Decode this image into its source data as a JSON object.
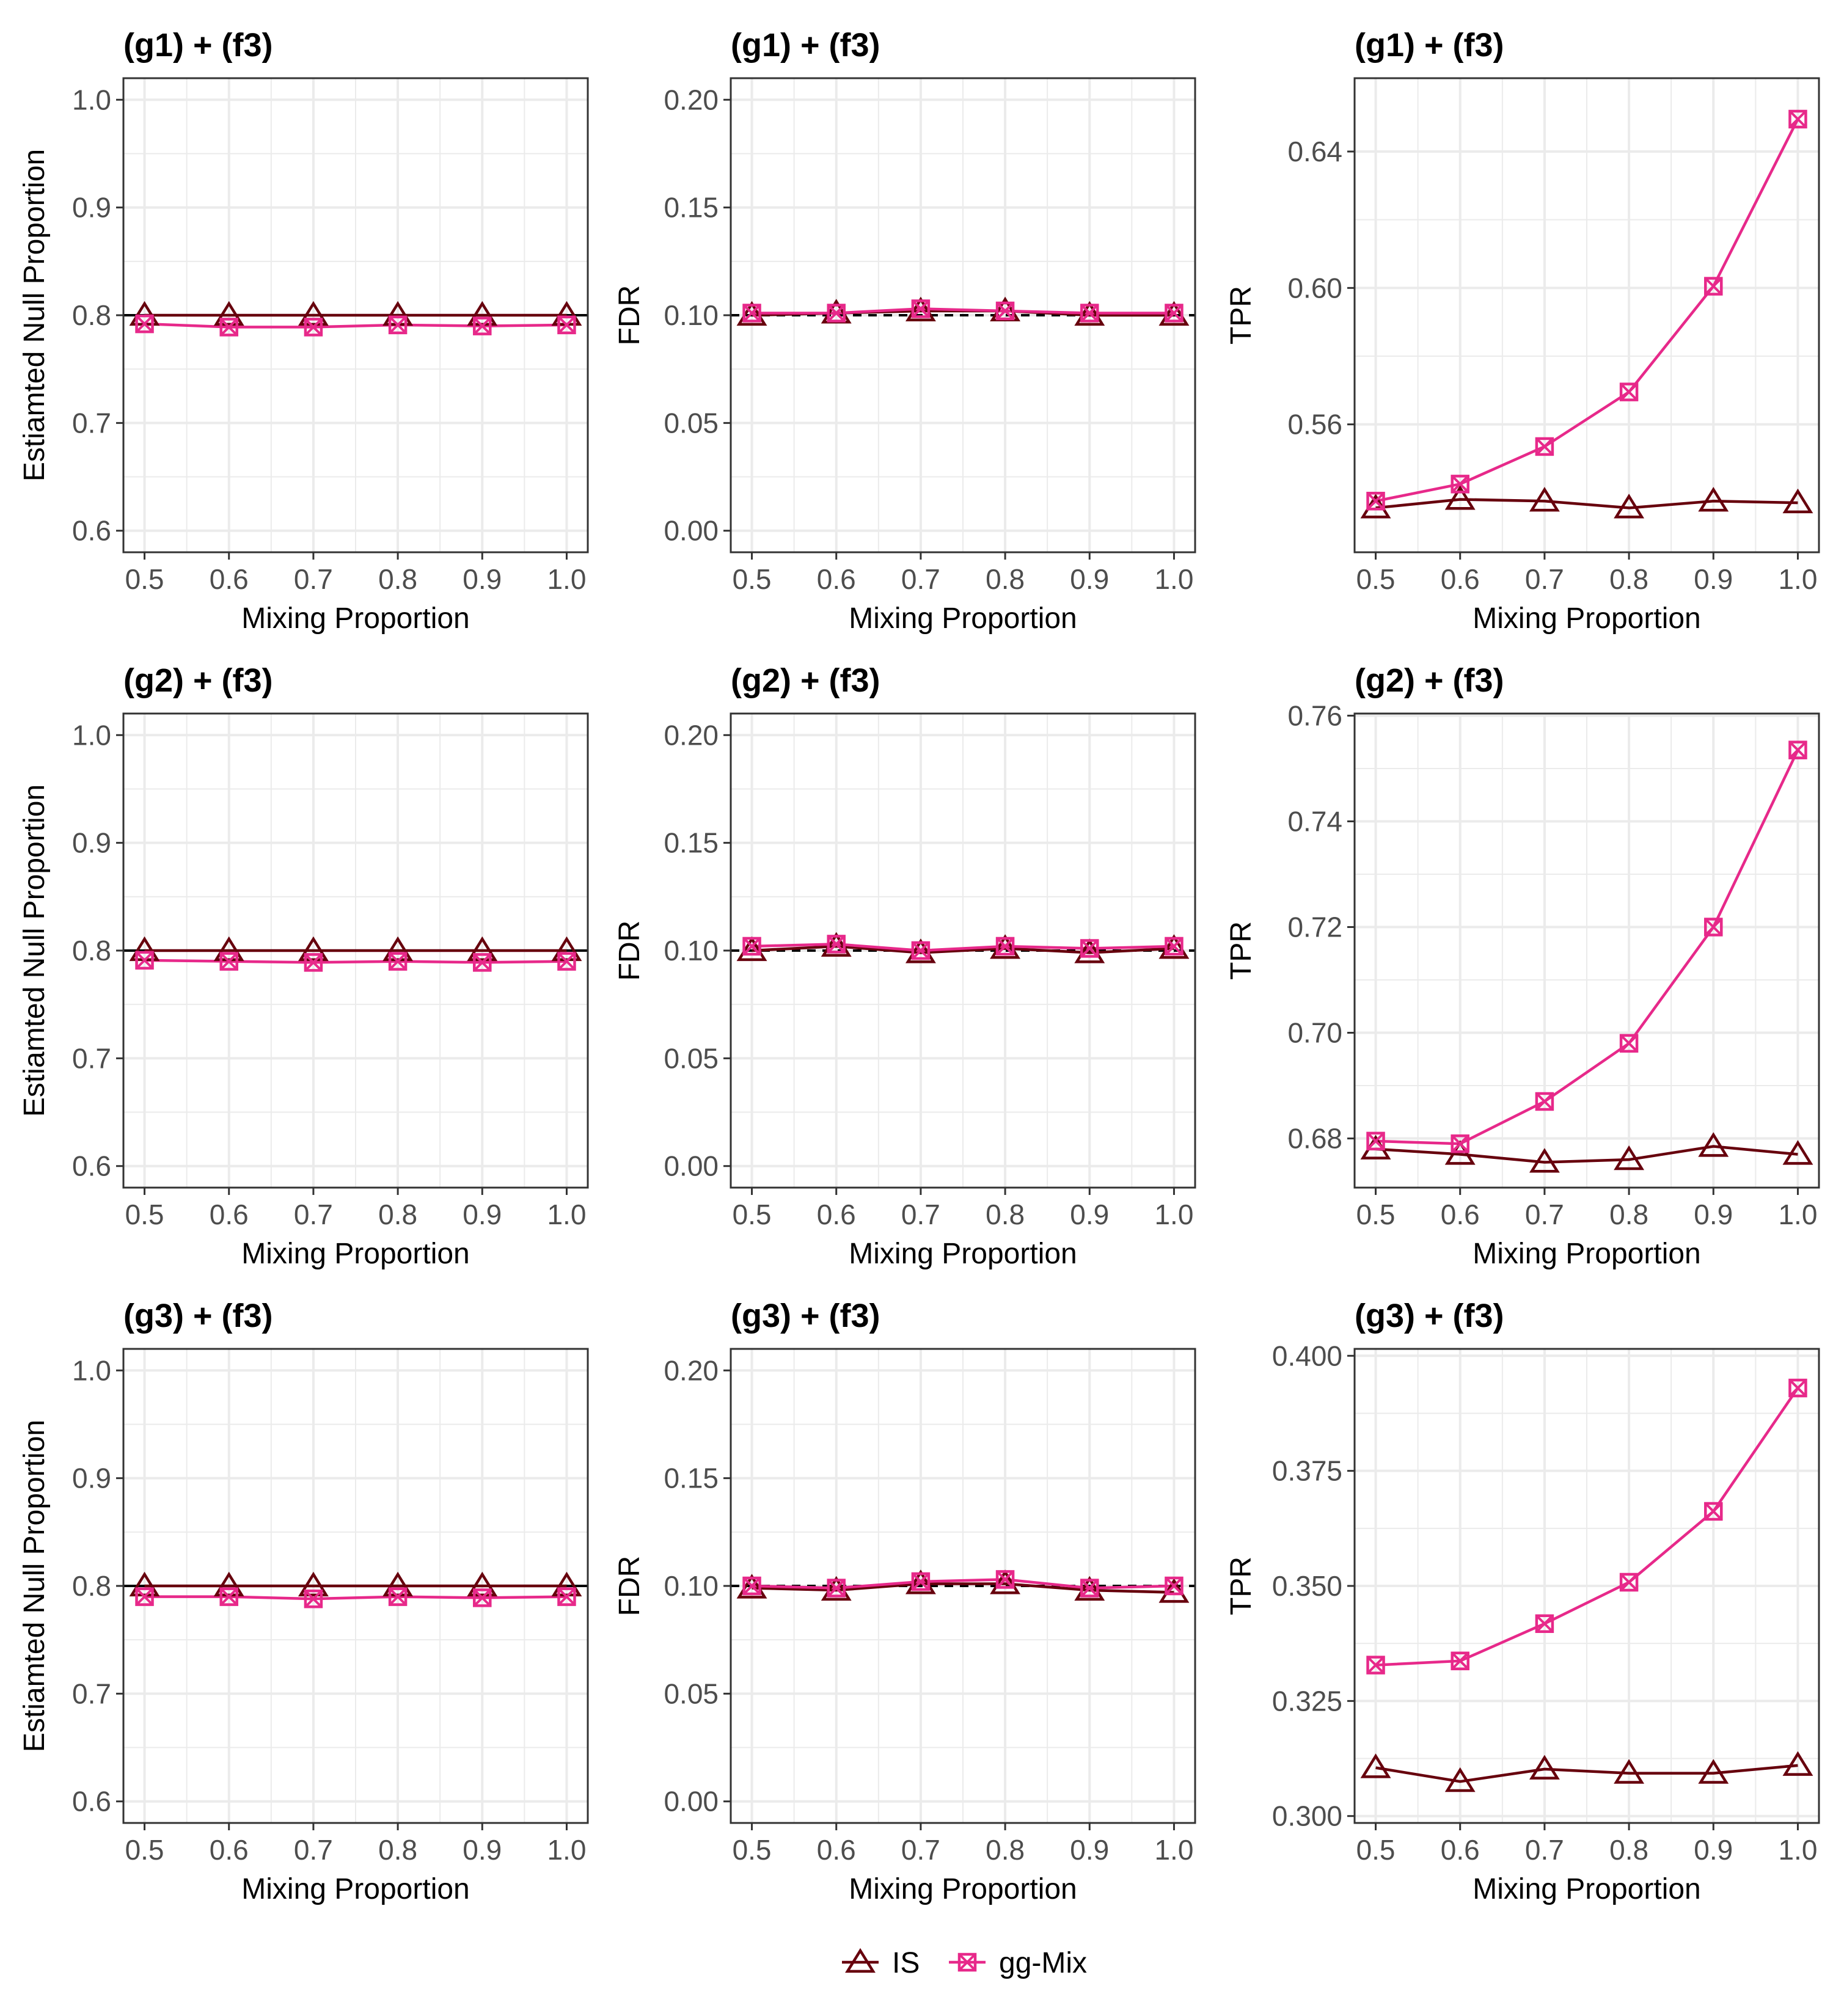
{
  "colors": {
    "is": "#67000d",
    "ggmix": "#e7298a",
    "reference": "#000000",
    "grid": "#ebebeb",
    "panel_border": "#333333"
  },
  "legend": {
    "position": "bottom",
    "items": [
      {
        "label": "IS",
        "marker": "triangle-open"
      },
      {
        "label": "gg-Mix",
        "marker": "square-x"
      }
    ]
  },
  "chart_data": [
    {
      "type": "line",
      "title": "(g1) + (f3)",
      "xlabel": "Mixing Proportion",
      "ylabel": "Estiamted Null Proportion",
      "x": [
        0.5,
        0.6,
        0.7,
        0.8,
        0.9,
        1.0
      ],
      "xlim": [
        0.475,
        1.025
      ],
      "ylim": [
        0.58,
        1.02
      ],
      "xticks": [
        "0.5",
        "0.6",
        "0.7",
        "0.8",
        "0.9",
        "1.0"
      ],
      "yticks": [
        "0.6",
        "0.7",
        "0.8",
        "0.9",
        "1.0"
      ],
      "reference": {
        "y": 0.8,
        "style": "solid"
      },
      "series": [
        {
          "name": "IS",
          "values": [
            0.8,
            0.8,
            0.8,
            0.8,
            0.8,
            0.8
          ]
        },
        {
          "name": "gg-Mix",
          "values": [
            0.792,
            0.789,
            0.789,
            0.791,
            0.79,
            0.791
          ]
        }
      ]
    },
    {
      "type": "line",
      "title": "(g1) + (f3)",
      "xlabel": "Mixing Proportion",
      "ylabel": "FDR",
      "x": [
        0.5,
        0.6,
        0.7,
        0.8,
        0.9,
        1.0
      ],
      "xlim": [
        0.475,
        1.025
      ],
      "ylim": [
        -0.01,
        0.21
      ],
      "xticks": [
        "0.5",
        "0.6",
        "0.7",
        "0.8",
        "0.9",
        "1.0"
      ],
      "yticks": [
        "0.00",
        "0.05",
        "0.10",
        "0.15",
        "0.20"
      ],
      "reference": {
        "y": 0.1,
        "style": "dashed"
      },
      "series": [
        {
          "name": "IS",
          "values": [
            0.1,
            0.101,
            0.102,
            0.102,
            0.1,
            0.1
          ]
        },
        {
          "name": "gg-Mix",
          "values": [
            0.101,
            0.101,
            0.103,
            0.102,
            0.101,
            0.101
          ]
        }
      ]
    },
    {
      "type": "line",
      "title": "(g1) + (f3)",
      "xlabel": "Mixing Proportion",
      "ylabel": "TPR",
      "x": [
        0.5,
        0.6,
        0.7,
        0.8,
        0.9,
        1.0
      ],
      "xlim": [
        0.475,
        1.025
      ],
      "ylim": [
        0.5225,
        0.6615
      ],
      "xticks": [
        "0.5",
        "0.6",
        "0.7",
        "0.8",
        "0.9",
        "1.0"
      ],
      "yticks": [
        "0.56",
        "0.60",
        "0.64"
      ],
      "series": [
        {
          "name": "IS",
          "values": [
            0.5355,
            0.538,
            0.5375,
            0.5355,
            0.5375,
            0.537
          ]
        },
        {
          "name": "gg-Mix",
          "values": [
            0.5375,
            0.5425,
            0.5535,
            0.5695,
            0.6005,
            0.6495
          ]
        }
      ]
    },
    {
      "type": "line",
      "title": "(g2) + (f3)",
      "xlabel": "Mixing Proportion",
      "ylabel": "Estiamted Null Proportion",
      "x": [
        0.5,
        0.6,
        0.7,
        0.8,
        0.9,
        1.0
      ],
      "xlim": [
        0.475,
        1.025
      ],
      "ylim": [
        0.58,
        1.02
      ],
      "xticks": [
        "0.5",
        "0.6",
        "0.7",
        "0.8",
        "0.9",
        "1.0"
      ],
      "yticks": [
        "0.6",
        "0.7",
        "0.8",
        "0.9",
        "1.0"
      ],
      "reference": {
        "y": 0.8,
        "style": "solid"
      },
      "series": [
        {
          "name": "IS",
          "values": [
            0.8,
            0.8,
            0.8,
            0.8,
            0.8,
            0.8
          ]
        },
        {
          "name": "gg-Mix",
          "values": [
            0.791,
            0.79,
            0.789,
            0.79,
            0.789,
            0.79
          ]
        }
      ]
    },
    {
      "type": "line",
      "title": "(g2) + (f3)",
      "xlabel": "Mixing Proportion",
      "ylabel": "FDR",
      "x": [
        0.5,
        0.6,
        0.7,
        0.8,
        0.9,
        1.0
      ],
      "xlim": [
        0.475,
        1.025
      ],
      "ylim": [
        -0.01,
        0.21
      ],
      "xticks": [
        "0.5",
        "0.6",
        "0.7",
        "0.8",
        "0.9",
        "1.0"
      ],
      "yticks": [
        "0.00",
        "0.05",
        "0.10",
        "0.15",
        "0.20"
      ],
      "reference": {
        "y": 0.1,
        "style": "dashed"
      },
      "series": [
        {
          "name": "IS",
          "values": [
            0.1,
            0.102,
            0.099,
            0.101,
            0.099,
            0.101
          ]
        },
        {
          "name": "gg-Mix",
          "values": [
            0.102,
            0.103,
            0.1,
            0.102,
            0.101,
            0.102
          ]
        }
      ]
    },
    {
      "type": "line",
      "title": "(g2) + (f3)",
      "xlabel": "Mixing Proportion",
      "ylabel": "TPR",
      "x": [
        0.5,
        0.6,
        0.7,
        0.8,
        0.9,
        1.0
      ],
      "xlim": [
        0.475,
        1.025
      ],
      "ylim": [
        0.6707,
        0.7604
      ],
      "xticks": [
        "0.5",
        "0.6",
        "0.7",
        "0.8",
        "0.9",
        "1.0"
      ],
      "yticks": [
        "0.68",
        "0.70",
        "0.72",
        "0.74",
        "0.76"
      ],
      "series": [
        {
          "name": "IS",
          "values": [
            0.678,
            0.677,
            0.6755,
            0.676,
            0.6785,
            0.677
          ]
        },
        {
          "name": "gg-Mix",
          "values": [
            0.6795,
            0.679,
            0.687,
            0.698,
            0.72,
            0.7535
          ]
        }
      ]
    },
    {
      "type": "line",
      "title": "(g3) + (f3)",
      "xlabel": "Mixing Proportion",
      "ylabel": "Estiamted Null Proportion",
      "x": [
        0.5,
        0.6,
        0.7,
        0.8,
        0.9,
        1.0
      ],
      "xlim": [
        0.475,
        1.025
      ],
      "ylim": [
        0.58,
        1.02
      ],
      "xticks": [
        "0.5",
        "0.6",
        "0.7",
        "0.8",
        "0.9",
        "1.0"
      ],
      "yticks": [
        "0.6",
        "0.7",
        "0.8",
        "0.9",
        "1.0"
      ],
      "reference": {
        "y": 0.8,
        "style": "solid"
      },
      "series": [
        {
          "name": "IS",
          "values": [
            0.8,
            0.8,
            0.8,
            0.8,
            0.8,
            0.8
          ]
        },
        {
          "name": "gg-Mix",
          "values": [
            0.79,
            0.79,
            0.788,
            0.79,
            0.789,
            0.79
          ]
        }
      ]
    },
    {
      "type": "line",
      "title": "(g3) + (f3)",
      "xlabel": "Mixing Proportion",
      "ylabel": "FDR",
      "x": [
        0.5,
        0.6,
        0.7,
        0.8,
        0.9,
        1.0
      ],
      "xlim": [
        0.475,
        1.025
      ],
      "ylim": [
        -0.01,
        0.21
      ],
      "xticks": [
        "0.5",
        "0.6",
        "0.7",
        "0.8",
        "0.9",
        "1.0"
      ],
      "yticks": [
        "0.00",
        "0.05",
        "0.10",
        "0.15",
        "0.20"
      ],
      "reference": {
        "y": 0.1,
        "style": "dashed"
      },
      "series": [
        {
          "name": "IS",
          "values": [
            0.099,
            0.098,
            0.101,
            0.101,
            0.098,
            0.097
          ]
        },
        {
          "name": "gg-Mix",
          "values": [
            0.1,
            0.099,
            0.102,
            0.103,
            0.099,
            0.1
          ]
        }
      ]
    },
    {
      "type": "line",
      "title": "(g3) + (f3)",
      "xlabel": "Mixing Proportion",
      "ylabel": "TPR",
      "x": [
        0.5,
        0.6,
        0.7,
        0.8,
        0.9,
        1.0
      ],
      "xlim": [
        0.475,
        1.025
      ],
      "ylim": [
        0.2985,
        0.4015
      ],
      "xticks": [
        "0.5",
        "0.6",
        "0.7",
        "0.8",
        "0.9",
        "1.0"
      ],
      "yticks": [
        "0.300",
        "0.325",
        "0.350",
        "0.375",
        "0.400"
      ],
      "series": [
        {
          "name": "IS",
          "values": [
            0.3105,
            0.3075,
            0.3102,
            0.3093,
            0.3093,
            0.311
          ]
        },
        {
          "name": "gg-Mix",
          "values": [
            0.3328,
            0.3337,
            0.3418,
            0.3508,
            0.3662,
            0.393
          ]
        }
      ]
    }
  ]
}
